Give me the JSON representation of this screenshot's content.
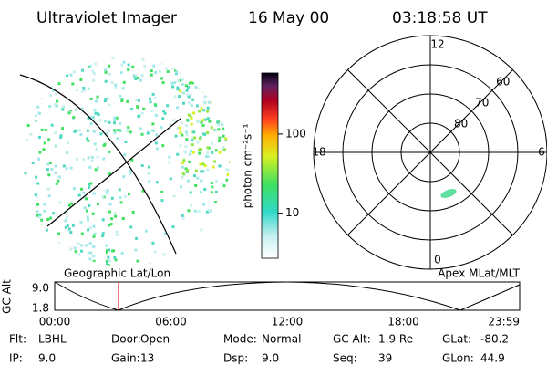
{
  "header": {
    "title": "Ultraviolet Imager",
    "date": "16 May 00",
    "time": "03:18:58 UT"
  },
  "colorbar": {
    "label": "photon cm⁻²s⁻¹",
    "ticks": [
      10,
      100
    ],
    "range": [
      2.7,
      590
    ]
  },
  "polar": {
    "mlt_labels": [
      12,
      18,
      6,
      0
    ],
    "lat_rings": [
      80,
      70,
      60
    ],
    "lat_edge": 50
  },
  "strip": {
    "ylabel": "GC Alt",
    "yticks": [
      "9.0",
      "1.8"
    ],
    "left_title": "Geographic Lat/Lon",
    "right_title": "Apex MLat/MLT",
    "xticks": [
      "00:00",
      "06:00",
      "12:00",
      "18:00",
      "23:59"
    ]
  },
  "footer": {
    "rows": [
      [
        [
          "Flt:",
          "LBHL"
        ],
        [
          "Door:",
          "Open"
        ],
        [
          "Mode:",
          "Normal"
        ],
        [
          "GC Alt:",
          "1.9 Re"
        ],
        [
          "GLat:",
          "-80.2"
        ]
      ],
      [
        [
          "IP:",
          "9.0"
        ],
        [
          "Gain:",
          "13"
        ],
        [
          "Dsp:",
          "9.0"
        ],
        [
          "Seq:",
          "39"
        ],
        [
          "GLon:",
          "44.9"
        ]
      ]
    ]
  }
}
